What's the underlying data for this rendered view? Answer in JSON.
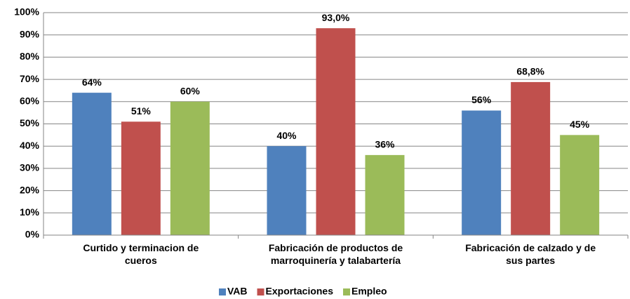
{
  "chart_data": {
    "type": "bar",
    "categories": [
      "Curtido y terminacion de cueros",
      "Fabricación de productos de marroquinería y talabartería",
      "Fabricación de calzado y de sus partes"
    ],
    "series": [
      {
        "name": "VAB",
        "color": "#4f81bd",
        "values": [
          64,
          40,
          56
        ],
        "value_labels": [
          "64%",
          "40%",
          "56%"
        ]
      },
      {
        "name": "Exportaciones",
        "color": "#c0504d",
        "values": [
          51,
          93,
          68.8
        ],
        "value_labels": [
          "51%",
          "93,0%",
          "68,8%"
        ]
      },
      {
        "name": "Empleo",
        "color": "#9bbb59",
        "values": [
          60,
          36,
          45
        ],
        "value_labels": [
          "60%",
          "36%",
          "45%"
        ]
      }
    ],
    "ylim": [
      0,
      100
    ],
    "yticks": [
      {
        "value": 0,
        "label": "0%"
      },
      {
        "value": 10,
        "label": "10%"
      },
      {
        "value": 20,
        "label": "20%"
      },
      {
        "value": 30,
        "label": "30%"
      },
      {
        "value": 40,
        "label": "40%"
      },
      {
        "value": 50,
        "label": "50%"
      },
      {
        "value": 60,
        "label": "60%"
      },
      {
        "value": 70,
        "label": "70%"
      },
      {
        "value": 80,
        "label": "80%"
      },
      {
        "value": 90,
        "label": "90%"
      },
      {
        "value": 100,
        "label": "100%"
      }
    ],
    "grid": true,
    "legend": "bottom"
  }
}
